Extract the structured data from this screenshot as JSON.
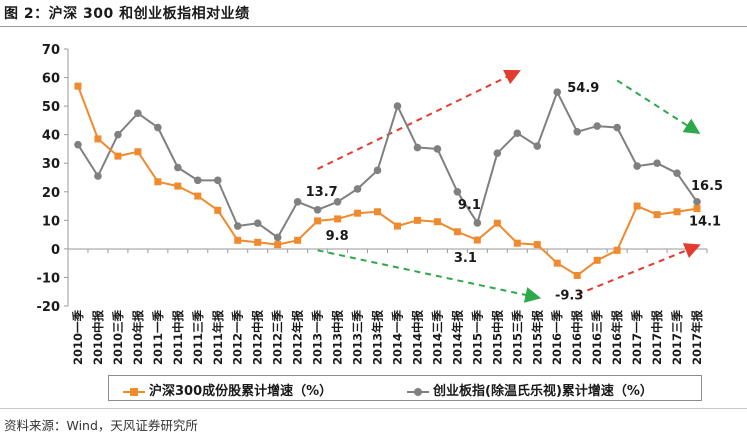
{
  "figure_title": "图 2：沪深 300 和创业板指相对业绩",
  "source_note": "资料来源：Wind，天风证券研究所",
  "colors": {
    "series_orange": "#F08A2E",
    "series_gray": "#808080",
    "arrow_red": "#E33B2E",
    "arrow_green": "#2DA84A"
  },
  "chart_data": {
    "type": "line",
    "ylim": [
      -20,
      70
    ],
    "yticks": [
      -20,
      -10,
      0,
      10,
      20,
      30,
      40,
      50,
      60,
      70
    ],
    "grid": false,
    "legend_position": "bottom",
    "categories": [
      "2010一季",
      "2010中报",
      "2010三季",
      "2010年报",
      "2011一季",
      "2011中报",
      "2011三季",
      "2011年报",
      "2012一季",
      "2012中报",
      "2012三季",
      "2012年报",
      "2013一季",
      "2013中报",
      "2013三季",
      "2013年报",
      "2014一季",
      "2014中报",
      "2014三季",
      "2014年报",
      "2015一季",
      "2015中报",
      "2015三季",
      "2015年报",
      "2016一季",
      "2016中报",
      "2016三季",
      "2016年报",
      "2017一季",
      "2017中报",
      "2017三季",
      "2017年报"
    ],
    "series": [
      {
        "name": "沪深300成份股累计增速（%）",
        "marker": "square",
        "color": "#F08A2E",
        "values": [
          57.0,
          38.5,
          32.5,
          34.0,
          23.5,
          22.0,
          18.5,
          13.5,
          3.0,
          2.3,
          1.5,
          3.0,
          9.8,
          10.5,
          12.5,
          13.0,
          8.0,
          10.0,
          9.5,
          6.0,
          3.1,
          9.0,
          2.0,
          1.5,
          -5.0,
          -9.3,
          -4.0,
          -0.5,
          15.0,
          12.0,
          13.0,
          14.1
        ]
      },
      {
        "name": "创业板指(除温氏乐视)累计增速（%）",
        "marker": "circle",
        "color": "#808080",
        "values": [
          36.5,
          25.5,
          40.0,
          47.5,
          42.5,
          28.5,
          24.0,
          24.0,
          8.0,
          9.0,
          4.0,
          16.5,
          13.7,
          16.5,
          21.0,
          27.5,
          50.0,
          35.5,
          35.0,
          20.0,
          9.1,
          33.5,
          40.5,
          36.0,
          54.9,
          41.0,
          43.0,
          42.5,
          29.0,
          30.0,
          26.5,
          16.5
        ]
      }
    ],
    "annotations": [
      {
        "text": "13.7",
        "category": "2013一季",
        "series": 1
      },
      {
        "text": "9.8",
        "category": "2013一季",
        "series": 0
      },
      {
        "text": "9.1",
        "category": "2015一季",
        "series": 1
      },
      {
        "text": "3.1",
        "category": "2015一季",
        "series": 0
      },
      {
        "text": "54.9",
        "category": "2016一季",
        "series": 1
      },
      {
        "text": "-9.3",
        "category": "2016中报",
        "series": 0
      },
      {
        "text": "16.5",
        "category": "2017年报",
        "series": 1
      },
      {
        "text": "14.1",
        "category": "2017年报",
        "series": 0
      }
    ],
    "trend_arrows": [
      {
        "color": "red",
        "from": {
          "category": "2013一季",
          "y": 28
        },
        "to": {
          "category": "2015三季",
          "y": 62
        }
      },
      {
        "color": "green",
        "from": {
          "category": "2013一季",
          "y": -0.5
        },
        "to": {
          "category": "2015年报",
          "y": -17
        }
      },
      {
        "color": "green",
        "from": {
          "category": "2016年报",
          "y": 59
        },
        "to": {
          "category": "2017年报",
          "y": 41
        }
      },
      {
        "color": "red",
        "from": {
          "category": "2016中报",
          "y": -16
        },
        "to": {
          "category": "2017年报",
          "y": 1
        }
      }
    ]
  }
}
